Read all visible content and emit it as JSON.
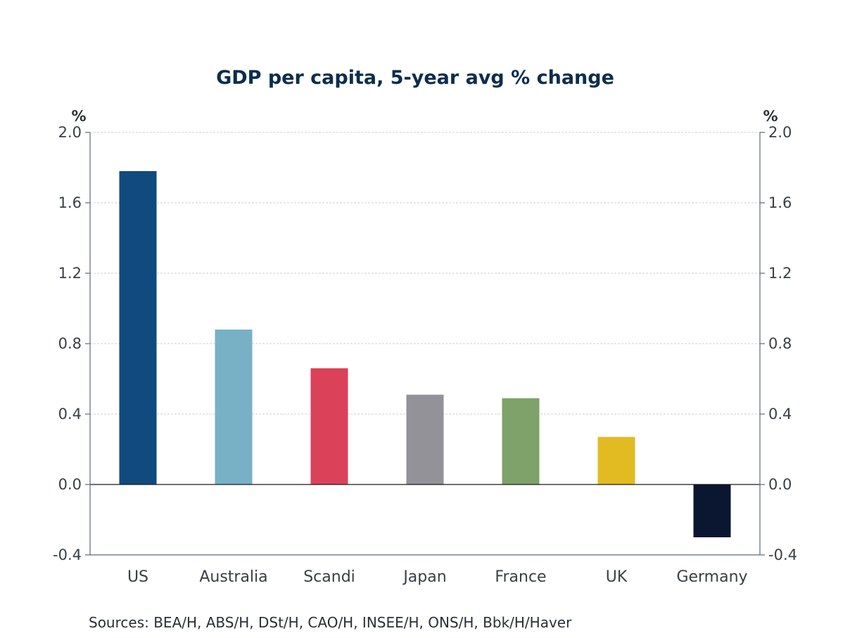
{
  "chart_data": {
    "type": "bar",
    "title": "GDP per capita, 5-year avg % change",
    "left_unit": "%",
    "right_unit": "%",
    "categories": [
      "US",
      "Australia",
      "Scandi",
      "Japan",
      "France",
      "UK",
      "Germany"
    ],
    "values": [
      1.78,
      0.88,
      0.66,
      0.51,
      0.49,
      0.27,
      -0.3
    ],
    "colors": [
      "#104a7e",
      "#78b0c6",
      "#dc415a",
      "#929298",
      "#7ea26a",
      "#e2ba22",
      "#0b1730"
    ],
    "ylim": [
      -0.4,
      2.0
    ],
    "yticks": [
      "2.0",
      "1.6",
      "1.2",
      "0.8",
      "0.4",
      "0.0",
      "-0.4"
    ],
    "ytick_values": [
      2.0,
      1.6,
      1.2,
      0.8,
      0.4,
      0.0,
      -0.4
    ],
    "grid": true,
    "source": "Sources:  BEA/H, ABS/H, DSt/H, CAO/H, INSEE/H, ONS/H, Bbk/H/Haver"
  }
}
